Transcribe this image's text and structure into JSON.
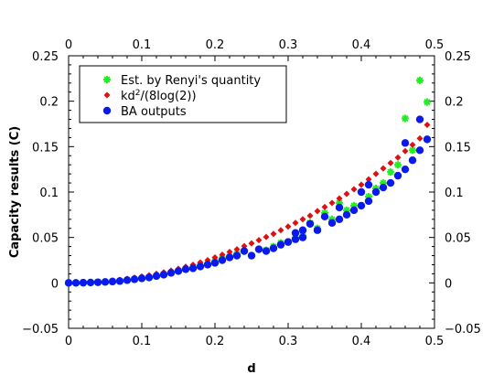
{
  "chart_data": {
    "type": "scatter",
    "xlabel": "d",
    "ylabel": "Capacity results (C)",
    "xlim": [
      0,
      0.5
    ],
    "ylim": [
      -0.05,
      0.25
    ],
    "xticks": [
      "0",
      "0.1",
      "0.2",
      "0.3",
      "0.4",
      "0.5"
    ],
    "yticks": [
      "−0.05",
      "0",
      "0.05",
      "0.1",
      "0.15",
      "0.2",
      "0.25"
    ],
    "xtick_values": [
      0,
      0.1,
      0.2,
      0.3,
      0.4,
      0.5
    ],
    "ytick_values": [
      -0.05,
      0,
      0.05,
      0.1,
      0.15,
      0.2,
      0.25
    ],
    "mirror_axes": true,
    "grid": false,
    "legend_position": "top-left",
    "series": [
      {
        "name": "Est. by Renyi's quantity",
        "marker": "asterisk",
        "color": "#22ee22",
        "x": [
          0,
          0.01,
          0.02,
          0.03,
          0.04,
          0.05,
          0.06,
          0.07,
          0.08,
          0.09,
          0.1,
          0.11,
          0.12,
          0.13,
          0.14,
          0.15,
          0.16,
          0.17,
          0.18,
          0.19,
          0.2,
          0.21,
          0.22,
          0.23,
          0.24,
          0.25,
          0.26,
          0.27,
          0.28,
          0.29,
          0.3,
          0.31,
          0.32,
          0.33,
          0.34,
          0.35,
          0.36,
          0.37,
          0.38,
          0.39,
          0.4,
          0.41,
          0.42,
          0.43,
          0.44,
          0.45,
          0.46,
          0.47,
          0.48,
          0.49
        ],
        "y": [
          0,
          0,
          0.0002,
          0.0004,
          0.0007,
          0.001,
          0.0015,
          0.002,
          0.003,
          0.0038,
          0.005,
          0.006,
          0.0075,
          0.009,
          0.011,
          0.013,
          0.015,
          0.017,
          0.019,
          0.021,
          0.024,
          0.027,
          0.029,
          0.032,
          0.035,
          0.03,
          0.037,
          0.036,
          0.04,
          0.044,
          0.045,
          0.05,
          0.052,
          0.066,
          0.06,
          0.077,
          0.07,
          0.088,
          0.08,
          0.085,
          0.1,
          0.095,
          0.104,
          0.11,
          0.122,
          0.13,
          0.181,
          0.146,
          0.223,
          0.199
        ]
      },
      {
        "name": "kd²/(8log(2))",
        "name_base": "kd",
        "name_sup": "2",
        "name_tail": "/(8log(2))",
        "marker": "diamond",
        "color": "#dd1111",
        "x": [
          0,
          0.01,
          0.02,
          0.03,
          0.04,
          0.05,
          0.06,
          0.07,
          0.08,
          0.09,
          0.1,
          0.11,
          0.12,
          0.13,
          0.14,
          0.15,
          0.16,
          0.17,
          0.18,
          0.19,
          0.2,
          0.21,
          0.22,
          0.23,
          0.24,
          0.25,
          0.26,
          0.27,
          0.28,
          0.29,
          0.3,
          0.31,
          0.32,
          0.33,
          0.34,
          0.35,
          0.36,
          0.37,
          0.38,
          0.39,
          0.4,
          0.41,
          0.42,
          0.43,
          0.44,
          0.45,
          0.46,
          0.47,
          0.48,
          0.49
        ],
        "y": [
          0,
          0.0001,
          0.0003,
          0.0006,
          0.0011,
          0.0017,
          0.0025,
          0.0034,
          0.0045,
          0.0057,
          0.007,
          0.0084,
          0.01,
          0.0117,
          0.0136,
          0.0156,
          0.0178,
          0.02,
          0.0225,
          0.025,
          0.028,
          0.031,
          0.034,
          0.037,
          0.0405,
          0.0435,
          0.047,
          0.0505,
          0.054,
          0.058,
          0.062,
          0.066,
          0.07,
          0.074,
          0.079,
          0.0835,
          0.088,
          0.093,
          0.098,
          0.103,
          0.108,
          0.114,
          0.12,
          0.126,
          0.132,
          0.138,
          0.145,
          0.152,
          0.159,
          0.174
        ]
      },
      {
        "name": "BA outputs",
        "marker": "circle",
        "color": "#0a1aee",
        "x": [
          0,
          0.01,
          0.02,
          0.03,
          0.04,
          0.05,
          0.06,
          0.07,
          0.08,
          0.09,
          0.1,
          0.11,
          0.12,
          0.13,
          0.14,
          0.15,
          0.16,
          0.17,
          0.18,
          0.19,
          0.2,
          0.21,
          0.22,
          0.23,
          0.24,
          0.25,
          0.26,
          0.27,
          0.28,
          0.29,
          0.3,
          0.31,
          0.31,
          0.32,
          0.32,
          0.33,
          0.34,
          0.35,
          0.36,
          0.37,
          0.37,
          0.38,
          0.39,
          0.4,
          0.4,
          0.41,
          0.41,
          0.42,
          0.43,
          0.44,
          0.45,
          0.46,
          0.46,
          0.47,
          0.48,
          0.48,
          0.49
        ],
        "y": [
          0,
          0,
          0.0002,
          0.0004,
          0.0007,
          0.001,
          0.0015,
          0.002,
          0.003,
          0.004,
          0.005,
          0.006,
          0.0075,
          0.009,
          0.011,
          0.013,
          0.015,
          0.016,
          0.018,
          0.02,
          0.022,
          0.025,
          0.028,
          0.03,
          0.035,
          0.03,
          0.037,
          0.035,
          0.038,
          0.042,
          0.045,
          0.048,
          0.055,
          0.05,
          0.058,
          0.065,
          0.058,
          0.073,
          0.066,
          0.07,
          0.083,
          0.075,
          0.08,
          0.085,
          0.1,
          0.09,
          0.108,
          0.1,
          0.105,
          0.11,
          0.118,
          0.125,
          0.154,
          0.135,
          0.146,
          0.18,
          0.158
        ]
      }
    ]
  }
}
